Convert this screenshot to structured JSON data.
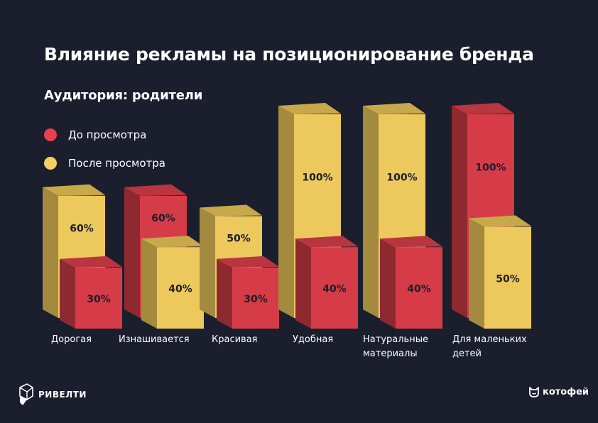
{
  "chart_data": {
    "type": "bar",
    "title": "Влияние рекламы на позиционирование бренда",
    "subtitle": "Аудитория: родители",
    "categories": [
      [
        "Дорогая"
      ],
      [
        "Изнашивается"
      ],
      [
        "Красивая"
      ],
      [
        "Удобная"
      ],
      [
        "Натуральные",
        "материалы"
      ],
      [
        "Для маленьких",
        "детей"
      ]
    ],
    "series": [
      {
        "name": "До просмотра",
        "color": "#d93b4a",
        "values": [
          30,
          60,
          30,
          40,
          40,
          100
        ]
      },
      {
        "name": "После просмотра",
        "color": "#f0cd5e",
        "values": [
          60,
          40,
          50,
          100,
          100,
          50
        ]
      }
    ],
    "value_labels": {
      "before": [
        "30%",
        "60%",
        "30%",
        "40%",
        "40%",
        "100%"
      ],
      "after": [
        "60%",
        "40%",
        "50%",
        "100%",
        "100%",
        "50%"
      ]
    },
    "ylim": [
      0,
      100
    ],
    "legend_position": "top-left",
    "grid": false,
    "style": "3d-bars"
  },
  "branding": {
    "left_logo": "РИВЕЛТИ",
    "left_logo_icon": "rivelti-icon",
    "right_logo": "котофей",
    "right_logo_icon": "cat-head-icon"
  }
}
